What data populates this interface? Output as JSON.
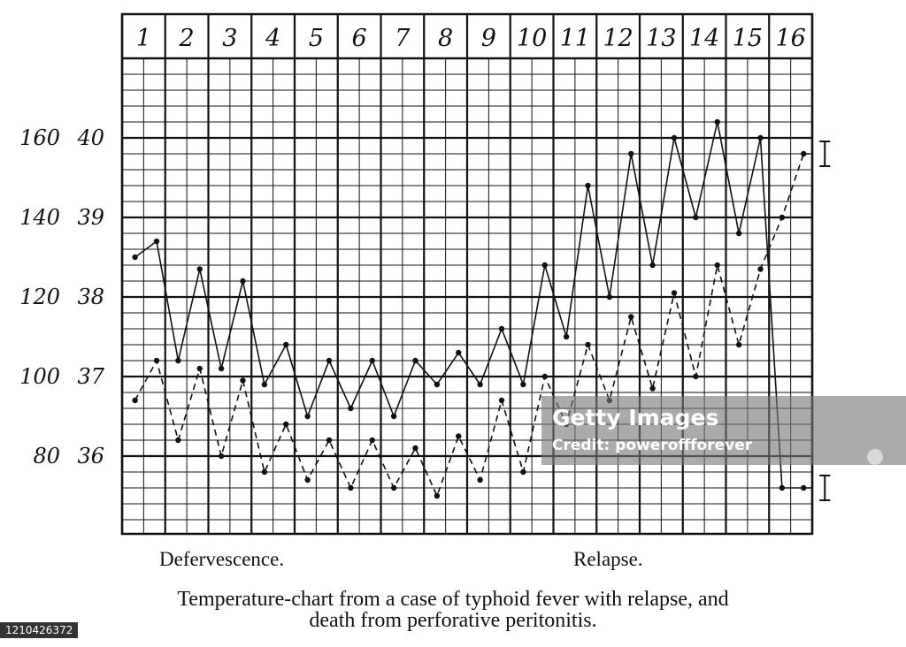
{
  "chart_data": {
    "type": "line",
    "x_ticks": [
      "1",
      "2",
      "3",
      "4",
      "5",
      "6",
      "7",
      "8",
      "9",
      "10",
      "11",
      "12",
      "13",
      "14",
      "15",
      "16"
    ],
    "y_ticks_pulse": [
      "160",
      "140",
      "120",
      "100",
      "80"
    ],
    "y_ticks_temp": [
      "40",
      "39",
      "38",
      "37",
      "36"
    ],
    "ylim_temp": [
      35.1,
      41.6
    ],
    "grid": true,
    "series": [
      {
        "style": "solid",
        "x": [
          0.3,
          0.8,
          1.3,
          1.8,
          2.3,
          2.8,
          3.3,
          3.8,
          4.3,
          4.8,
          5.3,
          5.8,
          6.3,
          6.8,
          7.3,
          7.8,
          8.3,
          8.8,
          9.3,
          9.8,
          10.3,
          10.8,
          11.3,
          11.8,
          12.3,
          12.8,
          13.3,
          13.8,
          14.3,
          14.8,
          15.3,
          15.8
        ],
        "y": [
          38.5,
          38.7,
          37.2,
          38.35,
          37.1,
          38.2,
          36.9,
          37.4,
          36.5,
          37.2,
          36.6,
          37.2,
          36.5,
          37.2,
          36.9,
          37.3,
          36.9,
          37.6,
          36.9,
          38.4,
          37.5,
          39.4,
          38.0,
          39.8,
          38.4,
          40.0,
          39.0,
          40.2,
          38.8,
          40.0,
          35.6,
          35.6
        ]
      },
      {
        "style": "dashed",
        "x": [
          0.3,
          0.8,
          1.3,
          1.8,
          2.3,
          2.8,
          3.3,
          3.8,
          4.3,
          4.8,
          5.3,
          5.8,
          6.3,
          6.8,
          7.3,
          7.8,
          8.3,
          8.8,
          9.3,
          9.8,
          10.3,
          10.8,
          11.3,
          11.8,
          12.3,
          12.8,
          13.3,
          13.8,
          14.3,
          14.8,
          15.3,
          15.8
        ],
        "y": [
          36.7,
          37.2,
          36.2,
          37.1,
          36.0,
          36.95,
          35.8,
          36.4,
          35.7,
          36.2,
          35.6,
          36.2,
          35.6,
          36.1,
          35.5,
          36.25,
          35.7,
          36.7,
          35.8,
          37.0,
          36.4,
          37.4,
          36.7,
          37.75,
          36.85,
          38.05,
          37.0,
          38.4,
          37.4,
          38.35,
          39.0,
          39.8
        ]
      }
    ],
    "annotations": [
      "Defervescence.",
      "Relapse."
    ],
    "title": "Temperature-chart from a case of typhoid fever with relapse, and death from perforative peritonitis."
  },
  "captions": {
    "left": "Defervescence.",
    "right": "Relapse.",
    "caption_line1": "Temperature-chart from a case of typhoid fever with relapse, and",
    "caption_line2": "death from perforative peritonitis."
  },
  "watermark": {
    "logo": "Getty Images",
    "credit": "Credit: poweroffforever",
    "image_id": "1210426372"
  }
}
